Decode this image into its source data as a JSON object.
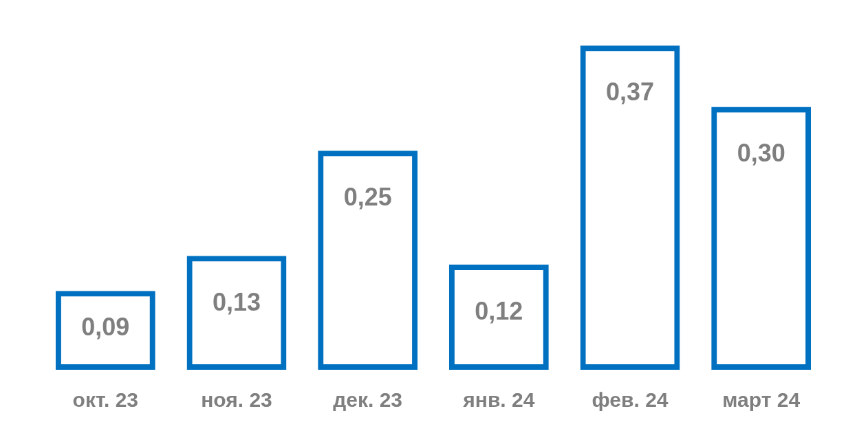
{
  "chart_data": {
    "type": "bar",
    "categories": [
      "окт. 23",
      "ноя. 23",
      "дек. 23",
      "янв. 24",
      "фев. 24",
      "март 24"
    ],
    "values": [
      0.09,
      0.13,
      0.25,
      0.12,
      0.37,
      0.3
    ],
    "value_labels": [
      "0,09",
      "0,13",
      "0,25",
      "0,12",
      "0,37",
      "0,30"
    ],
    "color": "#0070c0",
    "grid": false,
    "legend": false
  }
}
